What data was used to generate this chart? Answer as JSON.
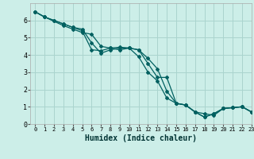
{
  "xlabel": "Humidex (Indice chaleur)",
  "bg_color": "#cceee8",
  "grid_color": "#aad4ce",
  "line_color": "#006060",
  "xlim": [
    -0.5,
    23
  ],
  "ylim": [
    0,
    7
  ],
  "xticks": [
    0,
    1,
    2,
    3,
    4,
    5,
    6,
    7,
    8,
    9,
    10,
    11,
    12,
    13,
    14,
    15,
    16,
    17,
    18,
    19,
    20,
    21,
    22,
    23
  ],
  "yticks": [
    0,
    1,
    2,
    3,
    4,
    5,
    6
  ],
  "series": [
    {
      "x": [
        0,
        1,
        2,
        3,
        4,
        5,
        6,
        7,
        8,
        9,
        10,
        11,
        12,
        13,
        14,
        15,
        16,
        17,
        18,
        19,
        20,
        21,
        22,
        23
      ],
      "y": [
        6.5,
        6.2,
        6.0,
        5.8,
        5.6,
        5.4,
        4.3,
        4.25,
        4.4,
        4.45,
        4.4,
        4.3,
        3.5,
        2.7,
        2.7,
        1.2,
        1.1,
        0.7,
        0.4,
        0.6,
        0.9,
        0.95,
        1.0,
        0.7
      ]
    },
    {
      "x": [
        0,
        1,
        2,
        3,
        4,
        5,
        6,
        7,
        8,
        9,
        10,
        11,
        12,
        13,
        14,
        15,
        16,
        17,
        18,
        19,
        20,
        21,
        22,
        23
      ],
      "y": [
        6.5,
        6.2,
        6.0,
        5.8,
        5.6,
        5.5,
        4.7,
        4.1,
        4.3,
        4.4,
        4.4,
        4.3,
        3.8,
        3.2,
        1.9,
        1.2,
        1.1,
        0.7,
        0.4,
        0.6,
        0.9,
        0.95,
        1.0,
        0.7
      ]
    },
    {
      "x": [
        0,
        1,
        3,
        4,
        5,
        6,
        7,
        8,
        9,
        10,
        11,
        12,
        13,
        14,
        15,
        16,
        17,
        18,
        19,
        20,
        21,
        22,
        23
      ],
      "y": [
        6.5,
        6.2,
        5.7,
        5.5,
        5.3,
        5.2,
        4.5,
        4.4,
        4.3,
        4.4,
        3.9,
        3.0,
        2.5,
        1.5,
        1.2,
        1.1,
        0.7,
        0.6,
        0.5,
        0.9,
        0.95,
        1.0,
        0.7
      ]
    }
  ]
}
